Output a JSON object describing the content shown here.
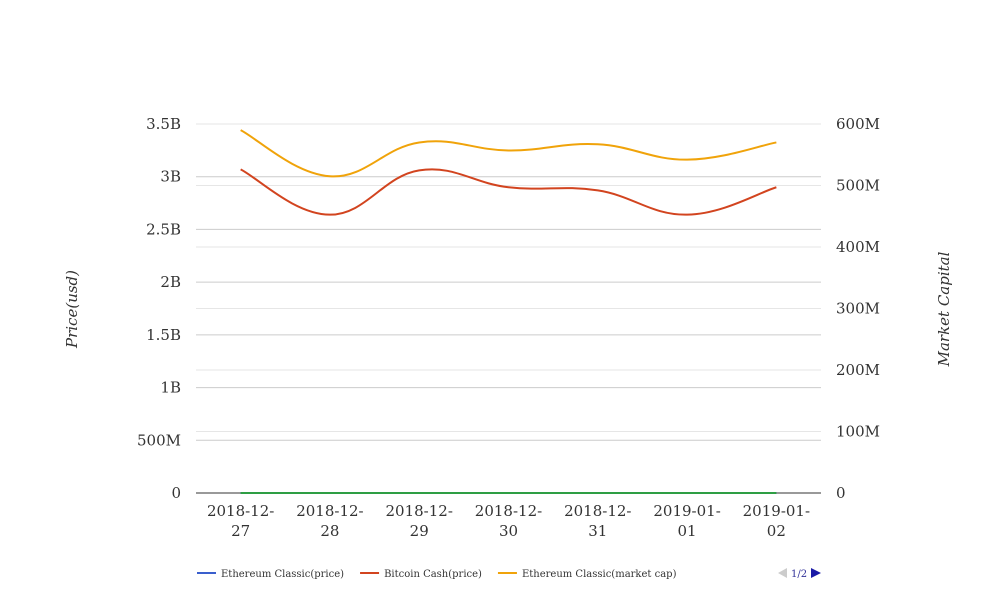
{
  "chart_data": {
    "type": "line",
    "categories": [
      "2018-12-27",
      "2018-12-28",
      "2018-12-29",
      "2018-12-30",
      "2018-12-31",
      "2019-01-01",
      "2019-01-02"
    ],
    "x_tick_labels": [
      [
        "2018-12-",
        "27"
      ],
      [
        "2018-12-",
        "28"
      ],
      [
        "2018-12-",
        "29"
      ],
      [
        "2018-12-",
        "30"
      ],
      [
        "2018-12-",
        "31"
      ],
      [
        "2019-01-",
        "01"
      ],
      [
        "2019-01-",
        "02"
      ]
    ],
    "y_left": {
      "label": "Price(usd)",
      "range": [
        0,
        3500000000
      ],
      "ticks": [
        0,
        500000000,
        1000000000,
        1500000000,
        2000000000,
        2500000000,
        3000000000,
        3500000000
      ],
      "tick_labels": [
        "0",
        "500M",
        "1B",
        "1.5B",
        "2B",
        "2.5B",
        "3B",
        "3.5B"
      ]
    },
    "y_right": {
      "label": "Market Capital",
      "range": [
        0,
        600000000
      ],
      "ticks": [
        0,
        100000000,
        200000000,
        300000000,
        400000000,
        500000000,
        600000000
      ],
      "tick_labels": [
        "0",
        "100M",
        "200M",
        "300M",
        "400M",
        "500M",
        "600M"
      ]
    },
    "series": [
      {
        "name": "Ethereum Classic(price)",
        "color": "#3a5fcd",
        "axis": "left",
        "values": [
          4.5,
          4.2,
          4.6,
          4.4,
          4.3,
          5.0,
          5.3
        ]
      },
      {
        "name": "Bitcoin Cash(price)",
        "color": "#d2441f",
        "axis": "left",
        "values": [
          3070000000,
          2640000000,
          3060000000,
          2900000000,
          2870000000,
          2640000000,
          2900000000
        ]
      },
      {
        "name": "Ethereum Classic(market cap)",
        "color": "#f0a30a",
        "axis": "right",
        "values": [
          590000000,
          515000000,
          570000000,
          557000000,
          567000000,
          542000000,
          570000000
        ]
      },
      {
        "name": "",
        "color": "#2e9e44",
        "axis": "right",
        "in_legend": false,
        "values": [
          60000,
          60000,
          60000,
          60000,
          60000,
          60000,
          60000
        ]
      }
    ],
    "grid": true,
    "legend": {
      "position": "bottom-left",
      "page": "1/2"
    }
  }
}
